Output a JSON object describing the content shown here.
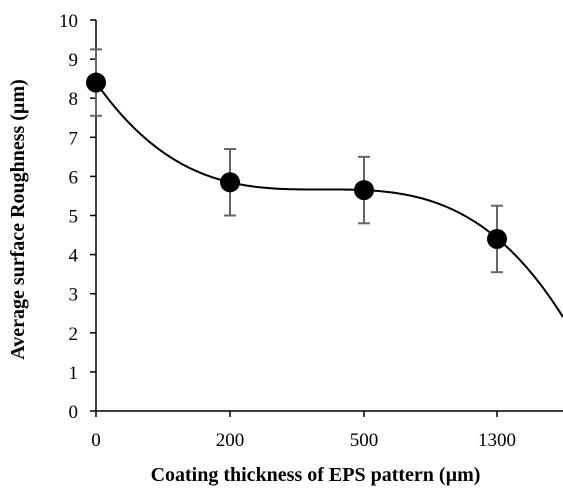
{
  "chart_data": {
    "type": "scatter",
    "title": "",
    "xlabel": "Coating thickness of EPS pattern (µm)",
    "ylabel": "Average surface Roughness (µm)",
    "categories": [
      "0",
      "200",
      "500",
      "1300"
    ],
    "ylim": [
      0,
      10
    ],
    "yticks": [
      "0",
      "1",
      "2",
      "3",
      "4",
      "5",
      "6",
      "7",
      "8",
      "9",
      "10"
    ],
    "grid": false,
    "legend": "none",
    "series": [
      {
        "values": [
          8.4,
          5.85,
          5.65,
          4.4
        ],
        "error": [
          0.85,
          0.85,
          0.85,
          0.85
        ],
        "marker": "filled-circle",
        "trendline": "polynomial",
        "color": "#000000",
        "error_color": "#666666"
      }
    ]
  }
}
